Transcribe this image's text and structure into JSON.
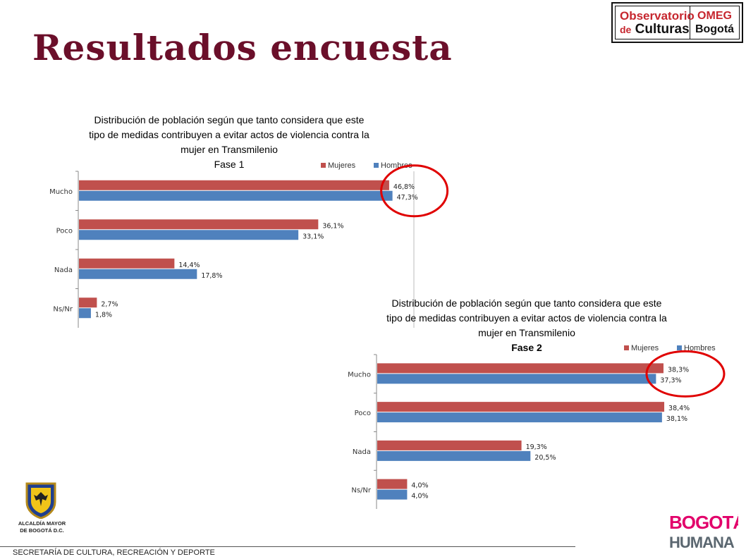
{
  "page": {
    "title": "Resultados encuesta",
    "footer": "SECRETARÍA DE CULTURA, RECREACIÓN Y DEPORTE",
    "alcaldia_line1": "ALCALDÍA MAYOR",
    "alcaldia_line2": "DE BOGOTÁ D.C."
  },
  "logos": {
    "obs_line1": "Observatorio",
    "obs_de": "de",
    "obs_culturas": "Culturas",
    "omeg": "OMEG",
    "omeg_bogota": "Bogotá",
    "bogota_humana_1": "BOGOTÁ",
    "bogota_humana_2": "HUMANA"
  },
  "colors": {
    "mujeres": "#c0504d",
    "hombres": "#4f81bd",
    "highlight": "#e00000",
    "title": "#6b0f2a"
  },
  "chart_data": [
    {
      "type": "bar",
      "orientation": "horizontal",
      "title": [
        "Distribución de población según que tanto considera que este",
        "tipo de medidas contribuyen a evitar actos de violencia contra la",
        "mujer en Transmilenio"
      ],
      "subtitle": "Fase 1",
      "categories": [
        "Mucho",
        "Poco",
        "Nada",
        "Ns/Nr"
      ],
      "series": [
        {
          "name": "Mujeres",
          "values": [
            46.8,
            36.1,
            14.4,
            2.7
          ],
          "labels": [
            "46,8%",
            "36,1%",
            "14,4%",
            "2,7%"
          ]
        },
        {
          "name": "Hombres",
          "values": [
            47.3,
            33.1,
            17.8,
            1.8
          ],
          "labels": [
            "47,3%",
            "33,1%",
            "17,8%",
            "1,8%"
          ]
        }
      ],
      "xlim": [
        0,
        50
      ],
      "legend": "top-right",
      "highlight_category": "Mucho"
    },
    {
      "type": "bar",
      "orientation": "horizontal",
      "title": [
        "Distribución de población según que tanto considera que este",
        "tipo de medidas contribuyen a evitar actos de violencia contra la",
        "mujer en Transmilenio"
      ],
      "subtitle": "Fase 2",
      "categories": [
        "Mucho",
        "Poco",
        "Nada",
        "Ns/Nr"
      ],
      "series": [
        {
          "name": "Mujeres",
          "values": [
            38.3,
            38.4,
            19.3,
            4.0
          ],
          "labels": [
            "38,3%",
            "38,4%",
            "19,3%",
            "4,0%"
          ]
        },
        {
          "name": "Hombres",
          "values": [
            37.3,
            38.1,
            20.5,
            4.0
          ],
          "labels": [
            "37,3%",
            "38,1%",
            "20,5%",
            "4,0%"
          ]
        }
      ],
      "xlim": [
        0,
        40
      ],
      "legend": "top-right",
      "highlight_category": "Mucho"
    }
  ]
}
